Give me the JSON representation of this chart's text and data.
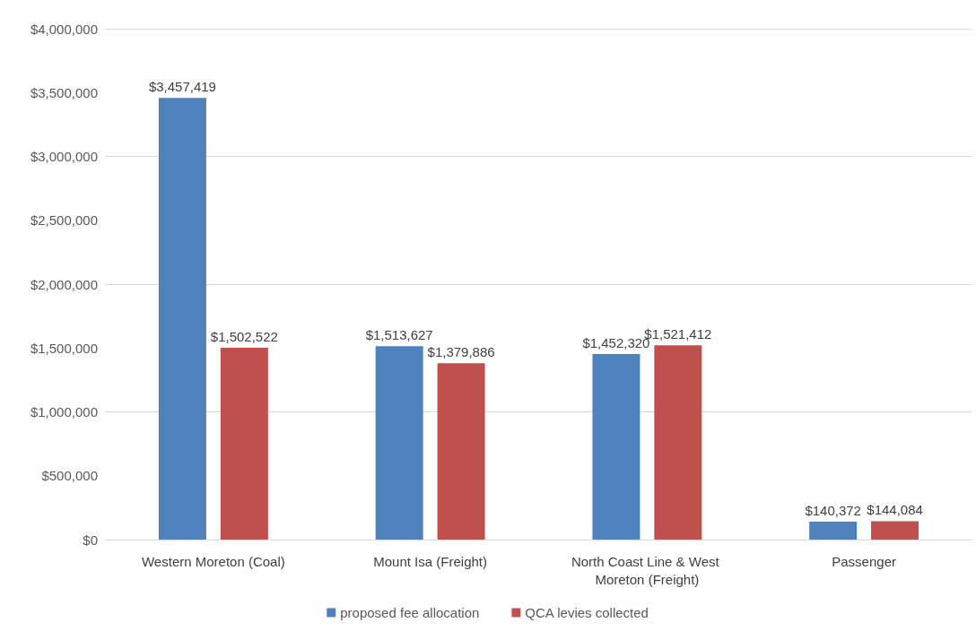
{
  "chart_data": {
    "type": "bar",
    "categories": [
      "Western Moreton (Coal)",
      "Mount Isa (Freight)",
      "North Coast Line & West Moreton (Freight)",
      "Passenger"
    ],
    "series": [
      {
        "name": "proposed fee allocation",
        "color": "#4f81bd",
        "values": [
          3457419,
          1513627,
          1452320,
          140372
        ],
        "value_labels": [
          "$3,457,419",
          "$1,513,627",
          "$1,452,320",
          "$140,372"
        ]
      },
      {
        "name": "QCA levies collected",
        "color": "#c0504d",
        "values": [
          1502522,
          1379886,
          1521412,
          144084
        ],
        "value_labels": [
          "$1,502,522",
          "$1,379,886",
          "$1,521,412",
          "$144,084"
        ]
      }
    ],
    "ylim": [
      0,
      4000000
    ],
    "yticks": [
      {
        "value": 0,
        "label": "$0"
      },
      {
        "value": 500000,
        "label": "$500,000"
      },
      {
        "value": 1000000,
        "label": "$1,000,000"
      },
      {
        "value": 1500000,
        "label": "$1,500,000"
      },
      {
        "value": 2000000,
        "label": "$2,000,000"
      },
      {
        "value": 2500000,
        "label": "$2,500,000"
      },
      {
        "value": 3000000,
        "label": "$3,000,000"
      },
      {
        "value": 3500000,
        "label": "$3,500,000"
      },
      {
        "value": 4000000,
        "label": "$4,000,000"
      }
    ],
    "grid": "y",
    "legend": "bottom"
  }
}
